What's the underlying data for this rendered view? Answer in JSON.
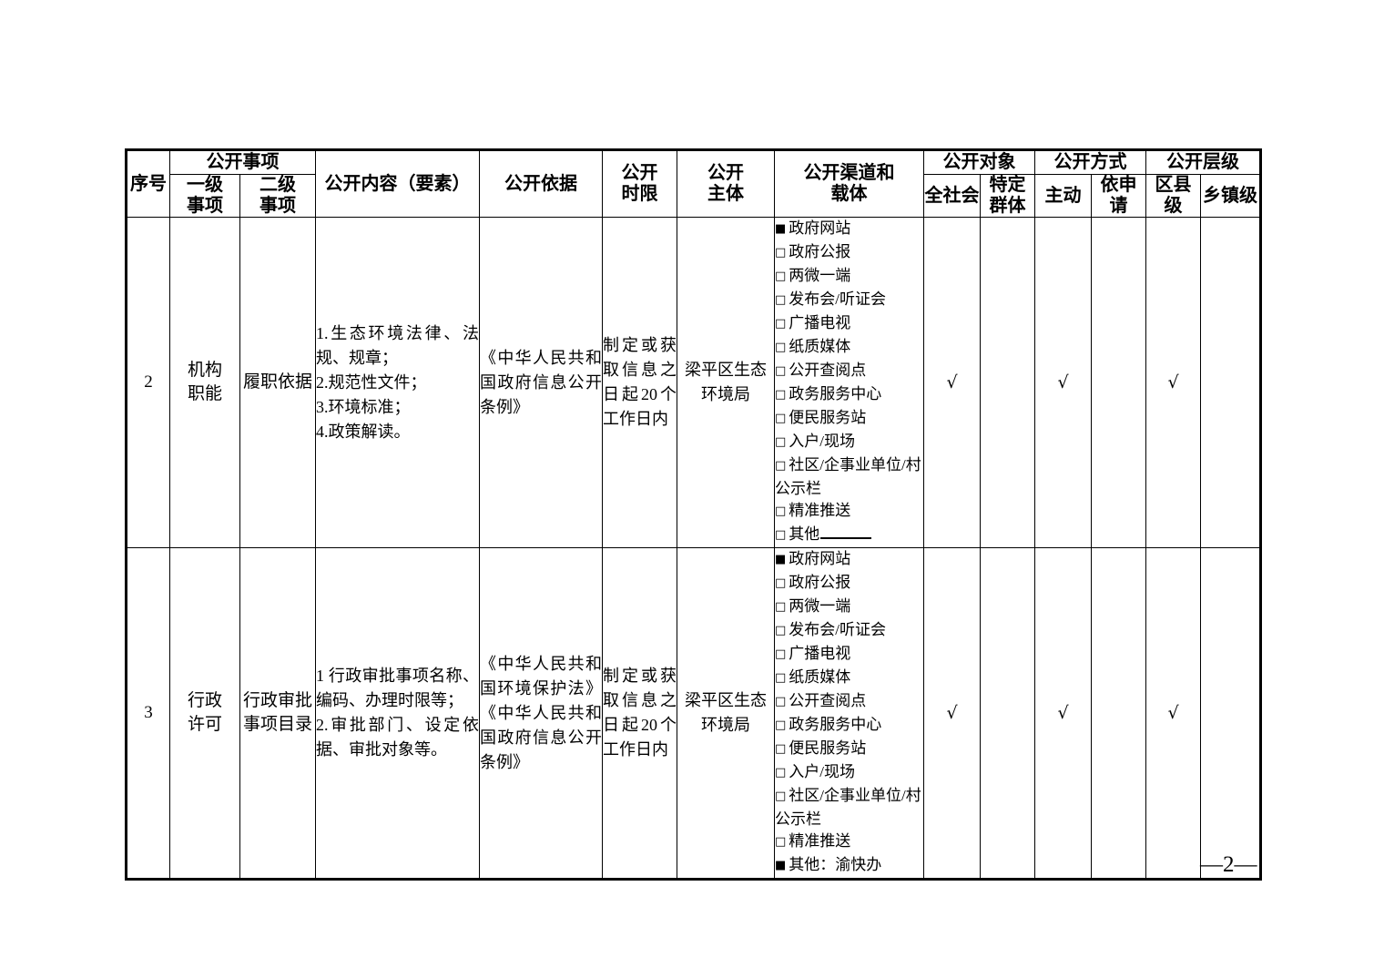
{
  "page": {
    "number": "—2—"
  },
  "table": {
    "header": {
      "serial": "序号",
      "matters_group": "公开事项",
      "level1": "一级\n事项",
      "level2": "二级\n事项",
      "content": "公开内容（要素）",
      "basis": "公开依据",
      "time_limit": "公开\n时限",
      "subject": "公开\n主体",
      "channels": "公开渠道和\n载体",
      "audience_group": "公开对象",
      "all_society": "全社会",
      "specific_group": "特定\n群体",
      "method_group": "公开方式",
      "proactive": "主动",
      "on_request": "依申请",
      "level_group": "公开层级",
      "district_level": "区县级",
      "township_level": "乡镇级"
    },
    "rows": [
      {
        "no": "2",
        "level1": "机构\n职能",
        "level2": "履职依据",
        "content": "1.生态环境法律、法规、规章；\n2.规范性文件；\n3.环境标准；\n4.政策解读。",
        "basis": "《中华人民共和国政府信息公开条例》",
        "time_limit": "制定或获取信息之日起20个工作日内",
        "subject": "梁平区生态环境局",
        "channels": [
          {
            "checked": true,
            "label": "政府网站"
          },
          {
            "checked": false,
            "label": "政府公报"
          },
          {
            "checked": false,
            "label": "两微一端"
          },
          {
            "checked": false,
            "label": "发布会/听证会"
          },
          {
            "checked": false,
            "label": "广播电视"
          },
          {
            "checked": false,
            "label": "纸质媒体"
          },
          {
            "checked": false,
            "label": "公开查阅点"
          },
          {
            "checked": false,
            "label": "政务服务中心"
          },
          {
            "checked": false,
            "label": "便民服务站"
          },
          {
            "checked": false,
            "label": "入户/现场"
          },
          {
            "checked": false,
            "label": "社区/企事业单位/村公示栏"
          },
          {
            "checked": false,
            "label": "精准推送"
          },
          {
            "checked": false,
            "label": "其他",
            "blank": true
          }
        ],
        "marks": {
          "all_society": "√",
          "specific_group": "",
          "proactive": "√",
          "on_request": "",
          "district_level": "√",
          "township_level": ""
        }
      },
      {
        "no": "3",
        "level1": "行政\n许可",
        "level2": "行政审批\n事项目录",
        "content": "1 行政审批事项名称、编码、办理时限等；\n2.审批部门、设定依据、审批对象等。",
        "basis": "《中华人民共和国环境保护法》《中华人民共和国政府信息公开条例》",
        "time_limit": "制定或获取信息之日起20个工作日内",
        "subject": "梁平区生态环境局",
        "channels": [
          {
            "checked": true,
            "label": "政府网站"
          },
          {
            "checked": false,
            "label": "政府公报"
          },
          {
            "checked": false,
            "label": "两微一端"
          },
          {
            "checked": false,
            "label": "发布会/听证会"
          },
          {
            "checked": false,
            "label": "广播电视"
          },
          {
            "checked": false,
            "label": "纸质媒体"
          },
          {
            "checked": false,
            "label": "公开查阅点"
          },
          {
            "checked": false,
            "label": "政务服务中心"
          },
          {
            "checked": false,
            "label": "便民服务站"
          },
          {
            "checked": false,
            "label": "入户/现场"
          },
          {
            "checked": false,
            "label": "社区/企事业单位/村公示栏"
          },
          {
            "checked": false,
            "label": "精准推送"
          },
          {
            "checked": true,
            "label": "其他：渝快办"
          }
        ],
        "marks": {
          "all_society": "√",
          "specific_group": "",
          "proactive": "√",
          "on_request": "",
          "district_level": "√",
          "township_level": ""
        }
      }
    ]
  }
}
